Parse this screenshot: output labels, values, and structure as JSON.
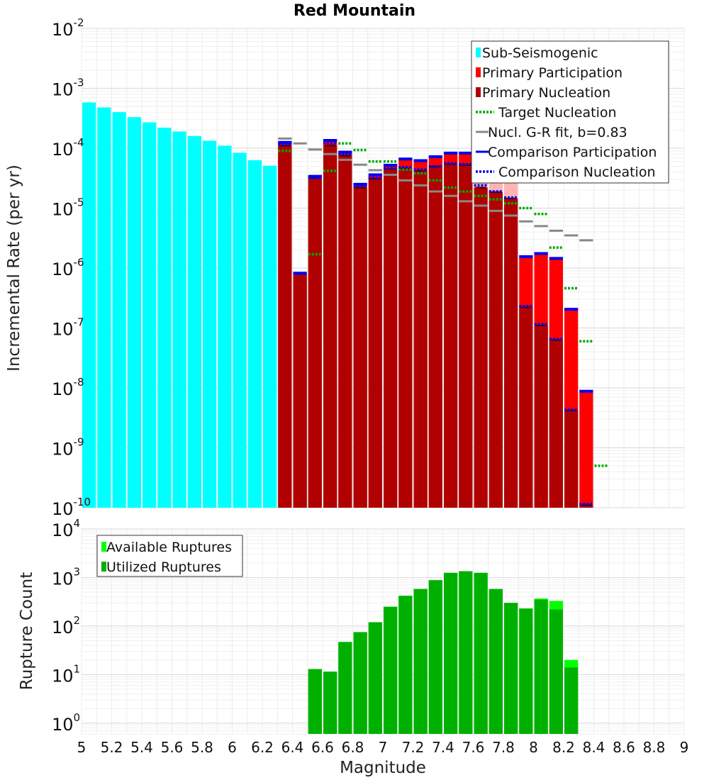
{
  "title": "Red Mountain",
  "xlabel": "Magnitude",
  "x_ticks": [
    "5",
    "5.2",
    "5.4",
    "5.6",
    "5.8",
    "6",
    "6.2",
    "6.4",
    "6.6",
    "6.8",
    "7",
    "7.2",
    "7.4",
    "7.6",
    "7.8",
    "8",
    "8.2",
    "8.4",
    "8.6",
    "8.8",
    "9"
  ],
  "colors": {
    "sub_seismogenic": "#00ffff",
    "primary_participation": "#ff0000",
    "primary_participation_light": "#ffb3b3",
    "primary_nucleation": "#b00000",
    "target_nucleation": "#00aa00",
    "gr_fit": "#888888",
    "comparison": "#0000ee",
    "available": "#00ff00",
    "utilized": "#00b000"
  },
  "chart_data": [
    {
      "type": "bar",
      "title": "Red Mountain",
      "xlabel": "Magnitude",
      "ylabel": "Incremental Rate (per yr)",
      "yscale": "log",
      "xlim": [
        5,
        9
      ],
      "ylim": [
        1e-10,
        0.01
      ],
      "y_tick_labels": [
        {
          "base": "10",
          "exp": "-10"
        },
        {
          "base": "10",
          "exp": "-9"
        },
        {
          "base": "10",
          "exp": "-8"
        },
        {
          "base": "10",
          "exp": "-7"
        },
        {
          "base": "10",
          "exp": "-6"
        },
        {
          "base": "10",
          "exp": "-5"
        },
        {
          "base": "10",
          "exp": "-4"
        },
        {
          "base": "10",
          "exp": "-3"
        },
        {
          "base": "10",
          "exp": "-2"
        }
      ],
      "legend": [
        "Sub-Seismogenic",
        "Primary Participation",
        "Primary Nucleation",
        "Target Nucleation",
        "Nucl. G-R fit, b=0.83",
        "Comparison Participation",
        "Comparison Nucleation"
      ],
      "series": [
        {
          "name": "Sub-Seismogenic",
          "x": [
            5.05,
            5.15,
            5.25,
            5.35,
            5.45,
            5.55,
            5.65,
            5.75,
            5.85,
            5.95,
            6.05,
            6.15,
            6.25,
            6.55
          ],
          "values": [
            0.00058,
            0.00048,
            0.0004,
            0.00033,
            0.00027,
            0.00022,
            0.00019,
            0.00016,
            0.000133,
            0.00011,
            8.4e-05,
            6.3e-05,
            5.1e-05,
            1.6e-05
          ]
        },
        {
          "name": "Primary Participation",
          "x": [
            6.35,
            6.45,
            6.55,
            6.65,
            6.75,
            6.85,
            6.95,
            7.05,
            7.15,
            7.25,
            7.35,
            7.45,
            7.55,
            7.65,
            7.75,
            7.85,
            7.95,
            8.05,
            8.15,
            8.25,
            8.35
          ],
          "values": [
            0.00012,
            8e-07,
            3.3e-05,
            0.00013,
            8.3e-05,
            2.4e-05,
            3.5e-05,
            5e-05,
            6.5e-05,
            6e-05,
            7e-05,
            8e-05,
            8e-05,
            6.8e-05,
            4e-05,
            3e-05,
            1.5e-06,
            1.7e-06,
            1.4e-06,
            2e-07,
            8.5e-09
          ]
        },
        {
          "name": "Primary Nucleation",
          "x": [
            6.35,
            6.45,
            6.55,
            6.65,
            6.75,
            6.85,
            6.95,
            7.05,
            7.15,
            7.25,
            7.35,
            7.45,
            7.55,
            7.65,
            7.75,
            7.85,
            7.95,
            8.05,
            8.15,
            8.25,
            8.35
          ],
          "values": [
            0.00011,
            8e-07,
            3.2e-05,
            0.00011,
            7.5e-05,
            2.2e-05,
            3.1e-05,
            4.5e-05,
            4.6e-05,
            4.2e-05,
            4.9e-05,
            5.4e-05,
            5.2e-05,
            2.2e-05,
            1.85e-05,
            1.45e-05,
            2.2e-07,
            1.1e-07,
            6.3e-08,
            4.2e-09,
            1.1e-10
          ]
        },
        {
          "name": "Target Nucleation",
          "x": [
            6.35,
            6.55,
            6.65,
            6.75,
            6.85,
            6.95,
            7.05,
            7.15,
            7.25,
            7.35,
            7.45,
            7.55,
            7.65,
            7.75,
            7.85,
            7.95,
            8.05,
            8.15,
            8.25,
            8.35,
            8.45
          ],
          "values": [
            9e-05,
            1.7e-06,
            4.2e-05,
            0.00012,
            9.3e-05,
            6e-05,
            6e-05,
            4.4e-05,
            3.8e-05,
            2.9e-05,
            2.2e-05,
            1.9e-05,
            1.6e-05,
            1.4e-05,
            1.2e-05,
            1e-05,
            8e-06,
            2.2e-06,
            4.6e-07,
            6e-08,
            5e-10
          ]
        },
        {
          "name": "Nucl. G-R fit, b=0.83",
          "x": [
            6.35,
            6.45,
            6.55,
            6.65,
            6.75,
            6.85,
            6.95,
            7.05,
            7.15,
            7.25,
            7.35,
            7.45,
            7.55,
            7.65,
            7.75,
            7.85,
            7.95,
            8.05,
            8.15,
            8.25,
            8.35
          ],
          "values": [
            0.000145,
            0.00012,
            9.5e-05,
            8e-05,
            6.4e-05,
            5.3e-05,
            4.3e-05,
            3.6e-05,
            2.9e-05,
            2.4e-05,
            1.9e-05,
            1.6e-05,
            1.3e-05,
            1.1e-05,
            9e-06,
            7.5e-06,
            6e-06,
            5e-06,
            4.2e-06,
            3.5e-06,
            2.9e-06
          ]
        },
        {
          "name": "Comparison Participation",
          "x": [
            6.35,
            6.45,
            6.55,
            6.65,
            6.75,
            6.85,
            6.95,
            7.05,
            7.15,
            7.25,
            7.35,
            7.45,
            7.55,
            7.65,
            7.75,
            7.85,
            7.95,
            8.05,
            8.15,
            8.25,
            8.35
          ],
          "values": [
            0.000125,
            8.2e-07,
            3.4e-05,
            0.000135,
            8.6e-05,
            2.5e-05,
            3.6e-05,
            5.2e-05,
            6.6e-05,
            6.2e-05,
            7.2e-05,
            8.3e-05,
            8.3e-05,
            7e-05,
            4.1e-05,
            3e-05,
            1.55e-06,
            1.75e-06,
            1.45e-06,
            2.05e-07,
            8.8e-09
          ]
        },
        {
          "name": "Comparison Nucleation",
          "x": [
            6.35,
            6.45,
            6.55,
            6.65,
            6.75,
            6.85,
            6.95,
            7.05,
            7.15,
            7.25,
            7.35,
            7.45,
            7.55,
            7.65,
            7.75,
            7.85,
            7.95,
            8.05,
            8.15,
            8.25,
            8.35
          ],
          "values": [
            0.000115,
            8.1e-07,
            3.2e-05,
            0.00012,
            8e-05,
            2.3e-05,
            3.2e-05,
            4.6e-05,
            4.8e-05,
            4.4e-05,
            5e-05,
            5.6e-05,
            5.4e-05,
            2.4e-05,
            1.9e-05,
            1.5e-05,
            2.3e-07,
            1.15e-07,
            6.5e-08,
            4.3e-09,
            1.15e-10
          ]
        }
      ]
    },
    {
      "type": "bar",
      "xlabel": "Magnitude",
      "ylabel": "Rupture Count",
      "yscale": "log",
      "xlim": [
        5,
        9
      ],
      "ylim": [
        0.6,
        10000
      ],
      "y_tick_labels": [
        {
          "base": "10",
          "exp": "0"
        },
        {
          "base": "10",
          "exp": "1"
        },
        {
          "base": "10",
          "exp": "2"
        },
        {
          "base": "10",
          "exp": "3"
        },
        {
          "base": "10",
          "exp": "4"
        }
      ],
      "legend": [
        "Available Ruptures",
        "Utilized Ruptures"
      ],
      "x": [
        6.55,
        6.65,
        6.75,
        6.85,
        6.95,
        7.05,
        7.15,
        7.25,
        7.35,
        7.45,
        7.55,
        7.65,
        7.75,
        7.85,
        7.95,
        8.05,
        8.15,
        8.25
      ],
      "series": [
        {
          "name": "Available Ruptures",
          "values": [
            13,
            11.5,
            47,
            75,
            120,
            250,
            420,
            580,
            880,
            1250,
            1350,
            1250,
            580,
            300,
            230,
            370,
            330,
            20
          ]
        },
        {
          "name": "Utilized Ruptures",
          "values": [
            13,
            11.5,
            47,
            75,
            120,
            250,
            420,
            580,
            880,
            1250,
            1350,
            1250,
            580,
            300,
            230,
            350,
            220,
            14
          ]
        }
      ]
    }
  ]
}
